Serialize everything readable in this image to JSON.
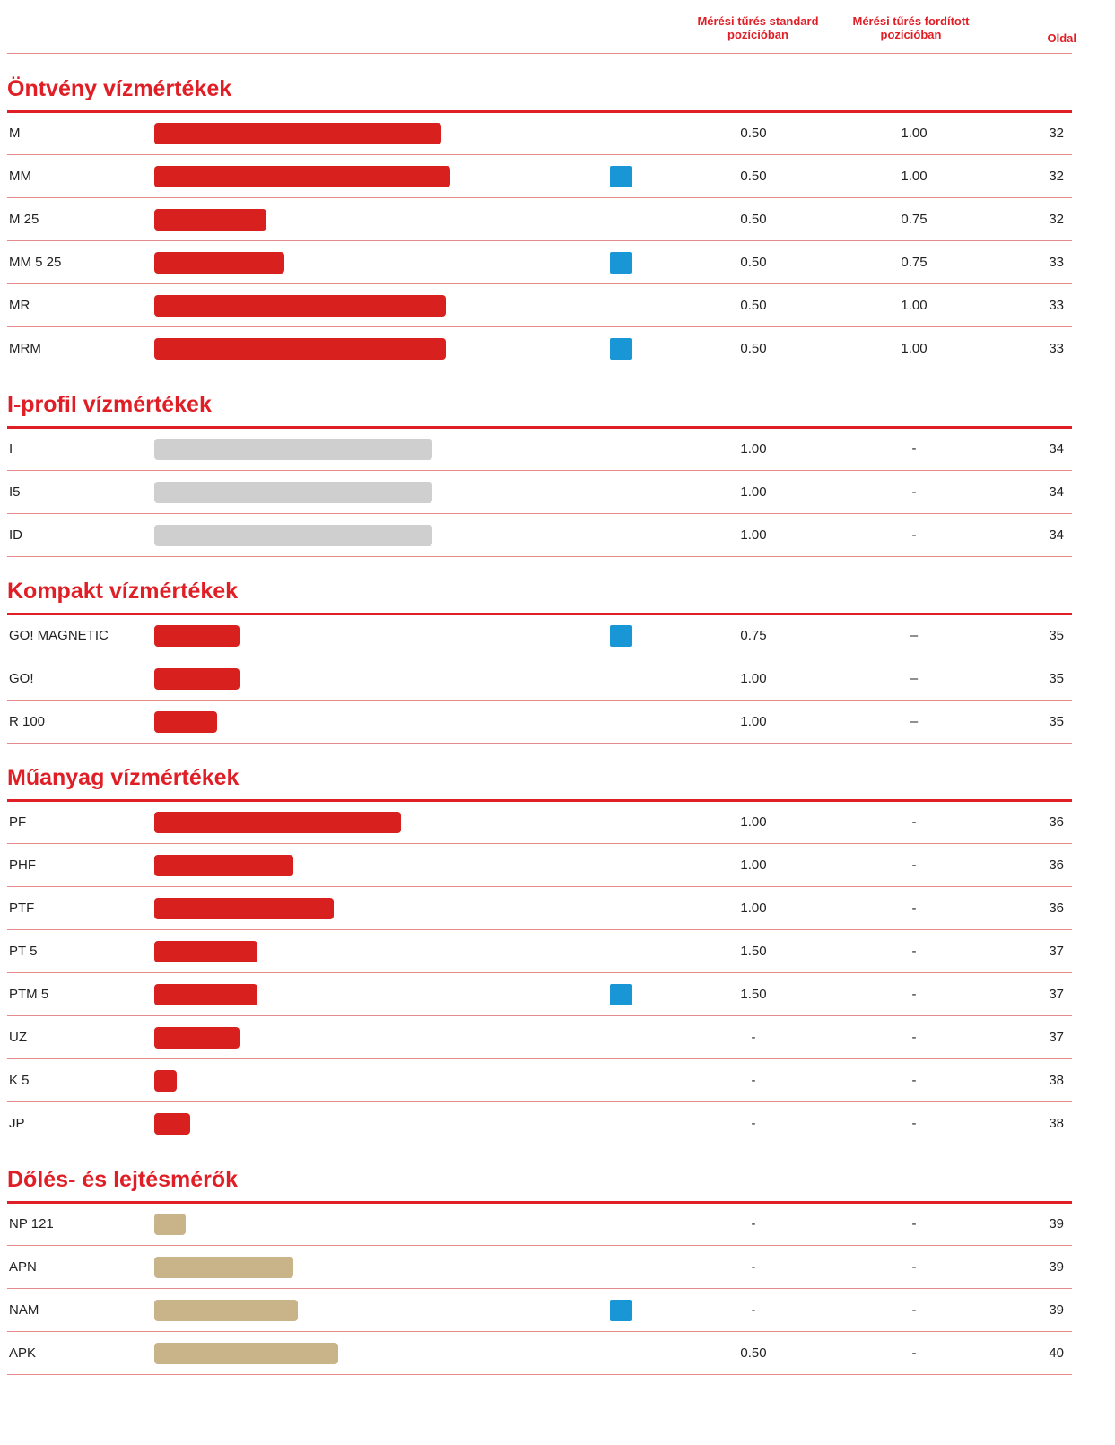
{
  "header": {
    "columns": [
      "Mérési tűrés standard pozícióban",
      "Mérési tűrés fordított pozícióban",
      "Oldal"
    ]
  },
  "sections": [
    {
      "title": "Öntvény vízmértékek",
      "rows": [
        {
          "name": "M",
          "magnetic": false,
          "standard": "0.50",
          "reversed": "1.00",
          "page": "32"
        },
        {
          "name": "MM",
          "magnetic": true,
          "standard": "0.50",
          "reversed": "1.00",
          "page": "32"
        },
        {
          "name": "M 25",
          "magnetic": false,
          "standard": "0.50",
          "reversed": "0.75",
          "page": "32"
        },
        {
          "name": "MM 5 25",
          "magnetic": true,
          "standard": "0.50",
          "reversed": "0.75",
          "page": "33"
        },
        {
          "name": "MR",
          "magnetic": false,
          "standard": "0.50",
          "reversed": "1.00",
          "page": "33"
        },
        {
          "name": "MRM",
          "magnetic": true,
          "standard": "0.50",
          "reversed": "1.00",
          "page": "33"
        }
      ]
    },
    {
      "title": "I-profil vízmértékek",
      "rows": [
        {
          "name": "I",
          "magnetic": false,
          "standard": "1.00",
          "reversed": "-",
          "page": "34"
        },
        {
          "name": "I5",
          "magnetic": false,
          "standard": "1.00",
          "reversed": "-",
          "page": "34"
        },
        {
          "name": "ID",
          "magnetic": false,
          "standard": "1.00",
          "reversed": "-",
          "page": "34"
        }
      ]
    },
    {
      "title": "Kompakt vízmértékek",
      "rows": [
        {
          "name": "GO! MAGNETIC",
          "magnetic": true,
          "standard": "0.75",
          "reversed": "–",
          "page": "35"
        },
        {
          "name": "GO!",
          "magnetic": false,
          "standard": "1.00",
          "reversed": "–",
          "page": "35"
        },
        {
          "name": "R 100",
          "magnetic": false,
          "standard": "1.00",
          "reversed": "–",
          "page": "35"
        }
      ]
    },
    {
      "title": "Műanyag vízmértékek",
      "rows": [
        {
          "name": "PF",
          "magnetic": false,
          "standard": "1.00",
          "reversed": "-",
          "page": "36"
        },
        {
          "name": "PHF",
          "magnetic": false,
          "standard": "1.00",
          "reversed": "-",
          "page": "36"
        },
        {
          "name": "PTF",
          "magnetic": false,
          "standard": "1.00",
          "reversed": "-",
          "page": "36"
        },
        {
          "name": "PT 5",
          "magnetic": false,
          "standard": "1.50",
          "reversed": "-",
          "page": "37"
        },
        {
          "name": "PTM 5",
          "magnetic": true,
          "standard": "1.50",
          "reversed": "-",
          "page": "37"
        },
        {
          "name": "UZ",
          "magnetic": false,
          "standard": "-",
          "reversed": "-",
          "page": "37"
        },
        {
          "name": "K 5",
          "magnetic": false,
          "standard": "-",
          "reversed": "-",
          "page": "38"
        },
        {
          "name": "JP",
          "magnetic": false,
          "standard": "-",
          "reversed": "-",
          "page": "38"
        }
      ]
    },
    {
      "title": "Dőlés- és lejtésmérők",
      "rows": [
        {
          "name": "NP 121",
          "magnetic": false,
          "standard": "-",
          "reversed": "-",
          "page": "39"
        },
        {
          "name": "APN",
          "magnetic": false,
          "standard": "-",
          "reversed": "-",
          "page": "39"
        },
        {
          "name": "NAM",
          "magnetic": true,
          "standard": "-",
          "reversed": "-",
          "page": "39"
        },
        {
          "name": "APK",
          "magnetic": false,
          "standard": "0.50",
          "reversed": "-",
          "page": "40"
        }
      ]
    }
  ]
}
